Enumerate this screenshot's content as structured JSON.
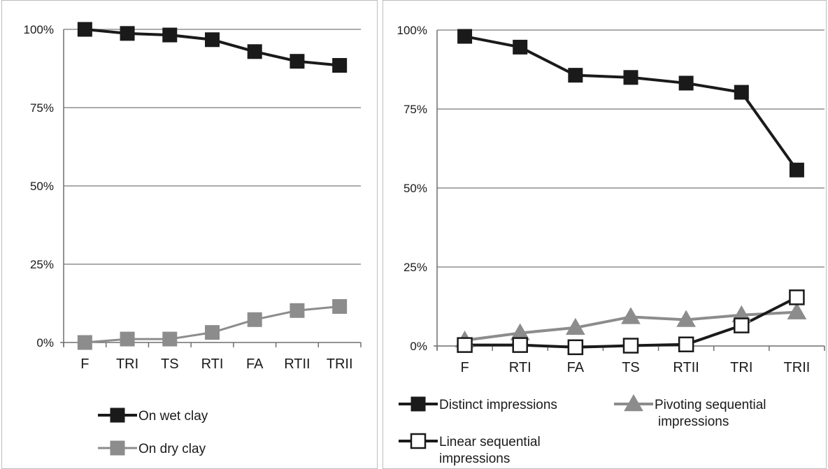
{
  "chart_data": [
    {
      "type": "line",
      "title": "",
      "xlabel": "",
      "ylabel": "",
      "categories": [
        "F",
        "TRI",
        "TS",
        "RTI",
        "FA",
        "RTII",
        "TRII"
      ],
      "ylim": [
        0,
        100
      ],
      "yticks": [
        "0%",
        "25%",
        "50%",
        "75%",
        "100%"
      ],
      "grid": true,
      "legend_position": "bottom",
      "series": [
        {
          "name": "On wet clay",
          "values": [
            100,
            98.7,
            98.2,
            96.7,
            92.9,
            89.8,
            88.5
          ],
          "color": "#1a1a1a",
          "marker": "filled-square"
        },
        {
          "name": "On dry clay",
          "values": [
            0,
            1.1,
            1.1,
            3.2,
            7.3,
            10.2,
            11.5
          ],
          "color": "#8c8c8c",
          "marker": "filled-square"
        }
      ]
    },
    {
      "type": "line",
      "title": "",
      "xlabel": "",
      "ylabel": "",
      "categories": [
        "F",
        "RTI",
        "FA",
        "TS",
        "RTII",
        "TRI",
        "TRII"
      ],
      "ylim": [
        0,
        100
      ],
      "yticks": [
        "0%",
        "25%",
        "50%",
        "75%",
        "100%"
      ],
      "grid": true,
      "legend_position": "bottom",
      "series": [
        {
          "name": "Distinct impressions",
          "values": [
            98,
            94.6,
            85.7,
            85,
            83.2,
            80.3,
            55.7
          ],
          "color": "#1a1a1a",
          "marker": "filled-square"
        },
        {
          "name": "Pivoting sequential impressions",
          "values": [
            1.8,
            4.1,
            5.8,
            9.2,
            8.3,
            9.8,
            10.7
          ],
          "color": "#8c8c8c",
          "marker": "triangle"
        },
        {
          "name": "Linear sequential impressions",
          "values": [
            0.3,
            0.3,
            -0.4,
            0.1,
            0.5,
            6.5,
            15.4
          ],
          "color": "#1a1a1a",
          "marker": "open-square"
        }
      ]
    }
  ]
}
